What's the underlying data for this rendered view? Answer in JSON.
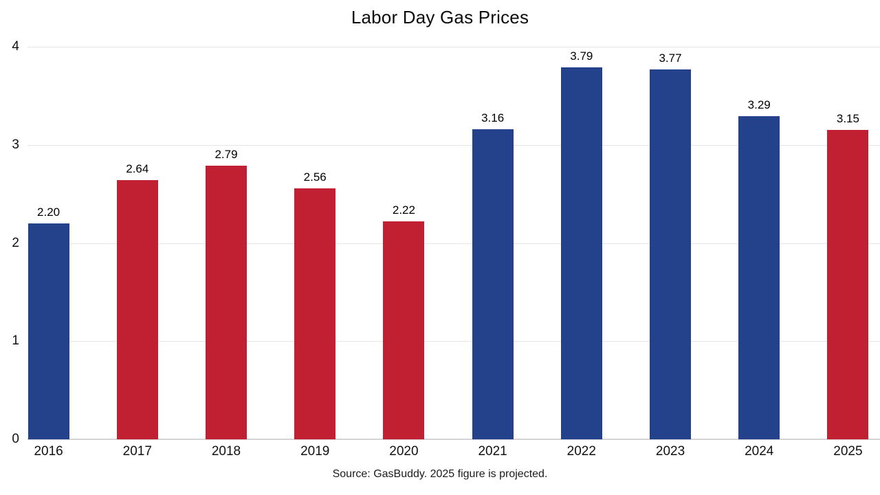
{
  "title": "Labor Day Gas Prices",
  "source_note": "Source: GasBuddy. 2025 figure is projected.",
  "colors": {
    "blue": "#24428C",
    "red": "#C12033",
    "gridline": "#e5e5e5",
    "baseline": "#d4d4d4"
  },
  "chart_data": {
    "type": "bar",
    "title": "Labor Day Gas Prices",
    "categories": [
      "2016",
      "2017",
      "2018",
      "2019",
      "2020",
      "2021",
      "2022",
      "2023",
      "2024",
      "2025"
    ],
    "values": [
      2.2,
      2.64,
      2.79,
      2.56,
      2.22,
      3.16,
      3.79,
      3.77,
      3.29,
      3.15
    ],
    "value_labels": [
      "2.20",
      "2.64",
      "2.79",
      "2.56",
      "2.22",
      "3.16",
      "3.79",
      "3.77",
      "3.29",
      "3.15"
    ],
    "bar_colors": [
      "blue",
      "red",
      "red",
      "red",
      "red",
      "blue",
      "blue",
      "blue",
      "blue",
      "red"
    ],
    "xlabel": "",
    "ylabel": "",
    "ylim": [
      0,
      4
    ],
    "yticks": [
      0,
      1,
      2,
      3,
      4
    ],
    "grid": true,
    "legend": false,
    "annotation": "Source: GasBuddy. 2025 figure is projected."
  }
}
